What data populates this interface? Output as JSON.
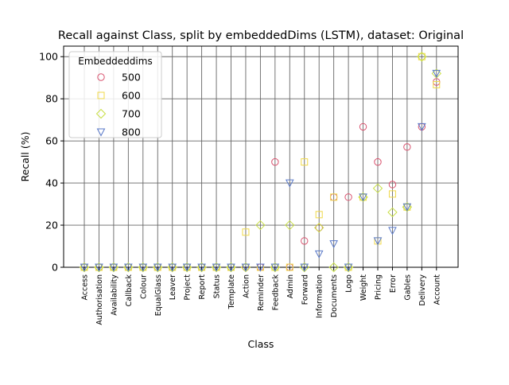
{
  "chart_data": {
    "type": "scatter",
    "title": "Recall against Class, split by embeddedDims (LSTM), dataset: Original",
    "xlabel": "Class",
    "ylabel": "Recall (%)",
    "ylim": [
      0,
      105
    ],
    "yticks": [
      0,
      20,
      40,
      60,
      80,
      100
    ],
    "grid": true,
    "legend_title": "Embeddeddims",
    "legend_position": "top-left",
    "categories": [
      "Access",
      "Authorisation",
      "Availability",
      "Callback",
      "Colour",
      "EqualGlass",
      "Leaver",
      "Project",
      "Report",
      "Status",
      "Template",
      "Action",
      "Reminder",
      "Feedback",
      "Admin",
      "Forward",
      "Information",
      "Documents",
      "Logo",
      "Weight",
      "Pricing",
      "Error",
      "Gables",
      "Delivery",
      "Account"
    ],
    "series": [
      {
        "name": "500",
        "marker": "circle",
        "color": "#d9536f",
        "values": [
          0,
          0,
          0,
          0,
          0,
          0,
          0,
          0,
          0,
          0,
          0,
          0,
          0,
          50,
          0,
          12.5,
          18.8,
          33.3,
          33.3,
          66.7,
          50,
          39.3,
          57.1,
          66.7,
          88
        ]
      },
      {
        "name": "600",
        "marker": "square",
        "color": "#f0d94a",
        "values": [
          0,
          0,
          0,
          0,
          0,
          0,
          0,
          0,
          0,
          0,
          0,
          16.7,
          0,
          0,
          0,
          50,
          25,
          33.3,
          0,
          33.3,
          12.5,
          34.8,
          28.6,
          100,
          86.7
        ]
      },
      {
        "name": "700",
        "marker": "diamond",
        "color": "#c8df45",
        "values": [
          0,
          0,
          0,
          0,
          0,
          0,
          0,
          0,
          0,
          0,
          0,
          0,
          20,
          0,
          20,
          0,
          18.8,
          0,
          0,
          33.3,
          37.5,
          26.1,
          28.6,
          100,
          92
        ]
      },
      {
        "name": "800",
        "marker": "triangle_down",
        "color": "#5878c8",
        "values": [
          0,
          0,
          0,
          0,
          0,
          0,
          0,
          0,
          0,
          0,
          0,
          0,
          0,
          0,
          40,
          0,
          6.3,
          11.1,
          0,
          33.3,
          12.5,
          17.4,
          28.6,
          66.7,
          92
        ]
      }
    ]
  }
}
